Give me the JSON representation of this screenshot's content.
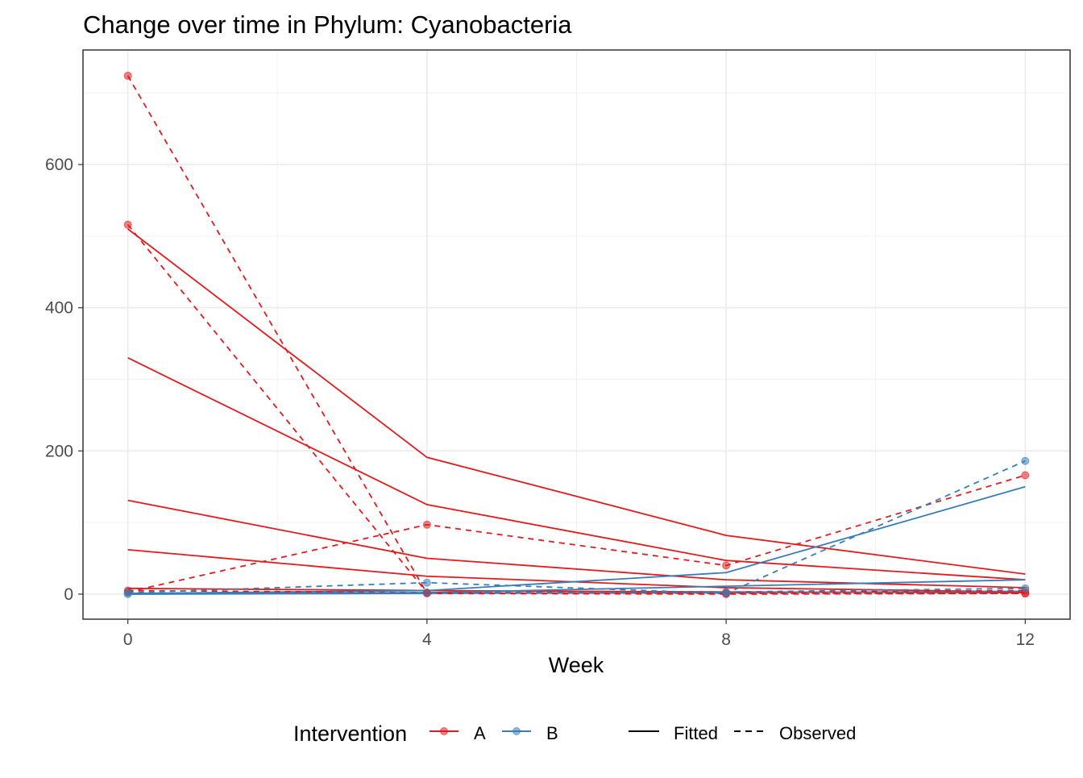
{
  "chart_data": {
    "type": "line",
    "title": "Change over time in Phylum: Cyanobacteria",
    "xlabel": "Week",
    "ylabel": "",
    "x_ticks": [
      0,
      4,
      8,
      12
    ],
    "y_ticks": [
      0,
      200,
      400,
      600
    ],
    "xlim": [
      -0.6,
      12.6
    ],
    "ylim": [
      -35,
      760
    ],
    "grid": true,
    "legend_placement": "bottom",
    "legend": {
      "color_title": "Intervention",
      "color_entries": [
        {
          "label": "A",
          "color": "#E41A1C"
        },
        {
          "label": "B",
          "color": "#377EB8"
        }
      ],
      "linetype_entries": [
        {
          "label": "Fitted",
          "dash": "solid"
        },
        {
          "label": "Observed",
          "dash": "dashed"
        }
      ]
    },
    "x": [
      0,
      4,
      8,
      12
    ],
    "series": [
      {
        "group": "A",
        "type": "Fitted",
        "values": [
          510,
          191,
          82,
          28
        ]
      },
      {
        "group": "A",
        "type": "Fitted",
        "values": [
          330,
          125,
          47,
          20
        ]
      },
      {
        "group": "A",
        "type": "Fitted",
        "values": [
          131,
          50,
          20,
          9
        ]
      },
      {
        "group": "A",
        "type": "Fitted",
        "values": [
          62,
          25,
          9,
          3
        ]
      },
      {
        "group": "A",
        "type": "Fitted",
        "values": [
          8,
          5,
          3,
          2
        ]
      },
      {
        "group": "B",
        "type": "Fitted",
        "values": [
          1,
          5,
          30,
          150
        ]
      },
      {
        "group": "B",
        "type": "Fitted",
        "values": [
          1,
          2,
          11,
          20
        ]
      },
      {
        "group": "B",
        "type": "Fitted",
        "values": [
          0,
          1,
          2,
          4
        ]
      },
      {
        "group": "A",
        "type": "Observed",
        "values": [
          724,
          1,
          0,
          1
        ]
      },
      {
        "group": "A",
        "type": "Observed",
        "values": [
          516,
          2,
          1,
          1
        ]
      },
      {
        "group": "A",
        "type": "Observed",
        "values": [
          3,
          97,
          40,
          166
        ]
      },
      {
        "group": "A",
        "type": "Observed",
        "values": [
          5,
          2,
          2,
          5
        ]
      },
      {
        "group": "B",
        "type": "Observed",
        "values": [
          2,
          16,
          1,
          186
        ]
      },
      {
        "group": "B",
        "type": "Observed",
        "values": [
          0,
          2,
          3,
          8
        ]
      }
    ]
  }
}
